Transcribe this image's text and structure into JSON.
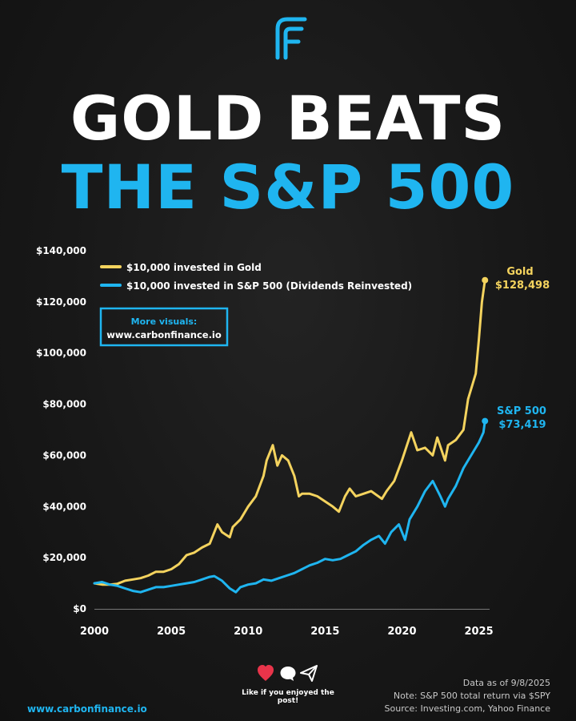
{
  "brand": {
    "logo_icon": "carbon-finance-f-logo-icon",
    "website": "www.carbonfinance.io"
  },
  "title": {
    "line1": "GOLD BEATS",
    "line2": "THE S&P 500"
  },
  "colors": {
    "gold": "#f4d35e",
    "sp500": "#1fb5f0",
    "accent": "#1fb5f0",
    "background": "#181818"
  },
  "chart_data": {
    "type": "line",
    "title": "",
    "xlabel": "",
    "ylabel": "",
    "xlim": [
      2000,
      2025.7
    ],
    "ylim": [
      0,
      140000
    ],
    "x_ticks": [
      2000,
      2005,
      2010,
      2015,
      2020,
      2025
    ],
    "y_ticks": [
      0,
      20000,
      40000,
      60000,
      80000,
      100000,
      120000,
      140000
    ],
    "y_tick_labels": [
      "$0",
      "$20,000",
      "$40,000",
      "$60,000",
      "$80,000",
      "$100,000",
      "$120,000",
      "$140,000"
    ],
    "grid": false,
    "legend_position": "top-left",
    "series": [
      {
        "name": "$10,000 invested in Gold",
        "color": "#f4d35e",
        "x": [
          2000,
          2000.5,
          2001,
          2001.5,
          2002,
          2002.5,
          2003,
          2003.5,
          2004,
          2004.5,
          2005,
          2005.5,
          2006,
          2006.5,
          2007,
          2007.5,
          2008,
          2008.3,
          2008.8,
          2009,
          2009.5,
          2010,
          2010.5,
          2011,
          2011.2,
          2011.6,
          2011.9,
          2012.2,
          2012.6,
          2013,
          2013.3,
          2013.5,
          2014,
          2014.5,
          2015,
          2015.5,
          2015.9,
          2016.3,
          2016.6,
          2017,
          2017.5,
          2018,
          2018.7,
          2019,
          2019.5,
          2020,
          2020.6,
          2021,
          2021.5,
          2022,
          2022.3,
          2022.8,
          2023,
          2023.5,
          2024,
          2024.3,
          2024.6,
          2024.8,
          2025,
          2025.2,
          2025.4
        ],
        "values": [
          10000,
          9500,
          9500,
          9800,
          11000,
          11500,
          12000,
          13000,
          14500,
          14500,
          15500,
          17500,
          21000,
          22000,
          24000,
          25500,
          33000,
          30000,
          28000,
          32000,
          35000,
          40000,
          44000,
          52000,
          58000,
          64000,
          56000,
          60000,
          58000,
          52000,
          44000,
          45000,
          45000,
          44000,
          42000,
          40000,
          38000,
          44000,
          47000,
          44000,
          45000,
          46000,
          43000,
          46000,
          50000,
          58000,
          69000,
          62000,
          63000,
          60000,
          67000,
          58000,
          64000,
          66000,
          70000,
          82000,
          88000,
          92000,
          105000,
          120000,
          128498
        ],
        "end_label": "Gold",
        "end_value_label": "$128,498"
      },
      {
        "name": "$10,000 invested in S&P 500 (Dividends Reinvested)",
        "color": "#1fb5f0",
        "x": [
          2000,
          2000.5,
          2001,
          2001.5,
          2002,
          2002.5,
          2003,
          2003.5,
          2004,
          2004.5,
          2005,
          2005.5,
          2006,
          2006.5,
          2007,
          2007.5,
          2007.8,
          2008.3,
          2008.8,
          2009.2,
          2009.5,
          2010,
          2010.5,
          2011,
          2011.5,
          2012,
          2012.5,
          2013,
          2013.5,
          2014,
          2014.5,
          2015,
          2015.5,
          2016,
          2016.5,
          2017,
          2017.5,
          2018,
          2018.5,
          2018.9,
          2019.3,
          2019.8,
          2020.2,
          2020.5,
          2021,
          2021.5,
          2022,
          2022.5,
          2022.8,
          2023,
          2023.5,
          2024,
          2024.5,
          2025,
          2025.3,
          2025.4
        ],
        "values": [
          10000,
          10500,
          9500,
          9000,
          8000,
          7000,
          6500,
          7500,
          8500,
          8500,
          9000,
          9500,
          10000,
          10500,
          11500,
          12500,
          12800,
          11000,
          8000,
          6500,
          8500,
          9500,
          10000,
          11500,
          11000,
          12000,
          13000,
          14000,
          15500,
          17000,
          18000,
          19500,
          19000,
          19500,
          21000,
          22500,
          25000,
          27000,
          28500,
          25500,
          30000,
          33000,
          27000,
          35000,
          40000,
          46000,
          50000,
          44000,
          40000,
          43000,
          48000,
          55000,
          60000,
          65000,
          69000,
          73419
        ],
        "end_label": "S&P 500",
        "end_value_label": "$73,419"
      }
    ]
  },
  "promo": {
    "label": "More visuals:",
    "url": "www.carbonfinance.io"
  },
  "social": {
    "like_text": "Like if you enjoyed the post!",
    "icons": [
      "heart-icon",
      "comment-icon",
      "send-icon"
    ]
  },
  "notes": {
    "date": "Data as of 9/8/2025",
    "note": "Note: S&P 500 total return via $SPY",
    "source": "Source: Investing.com, Yahoo Finance"
  }
}
